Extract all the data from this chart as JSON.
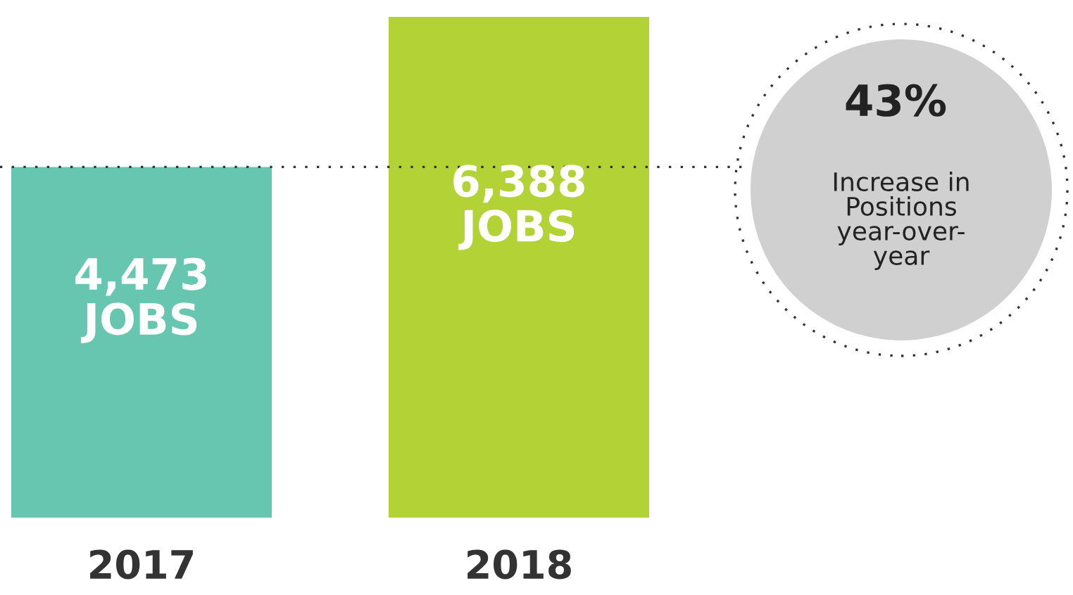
{
  "chart_data": {
    "type": "bar",
    "categories": [
      "2017",
      "2018"
    ],
    "values": [
      4473,
      6388
    ],
    "colors": [
      "#66c6b0",
      "#b2d235"
    ],
    "value_labels": [
      "4,473\nJOBS",
      "6,388\nJOBS"
    ],
    "ref_lines": [
      {
        "axis": "y",
        "value": 4473,
        "color": "#333333",
        "line_style": "dotted"
      }
    ],
    "annotations": [
      "43%",
      "Increase in\nPositions\nyear-over-\nyear"
    ],
    "grid": false,
    "tick_labels": "x"
  }
}
